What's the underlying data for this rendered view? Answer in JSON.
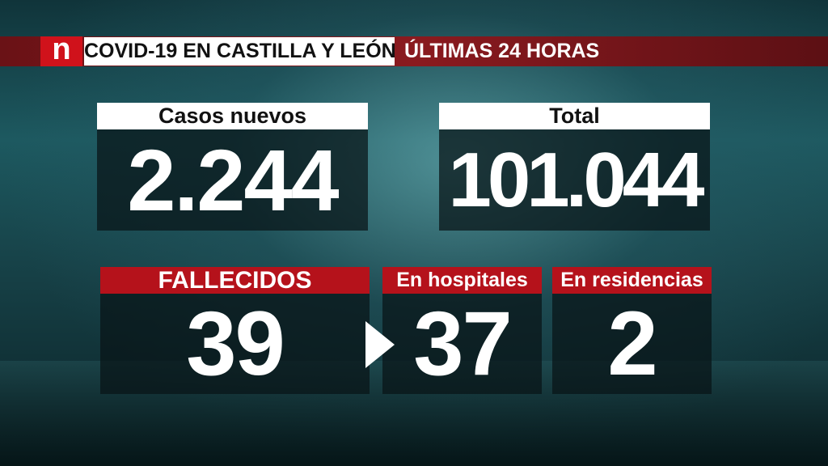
{
  "header": {
    "logo": "n",
    "title": "COVID-19 EN CASTILLA Y LEÓN",
    "subtitle": "ÚLTIMAS 24 HORAS"
  },
  "panels": [
    {
      "label": "Casos nuevos",
      "value": "2.244"
    },
    {
      "label": "Total",
      "value": "101.044"
    },
    {
      "label": "FALLECIDOS",
      "value": "39"
    },
    {
      "label": "En hospitales",
      "value": "37"
    },
    {
      "label": "En residencias",
      "value": "2"
    }
  ]
}
